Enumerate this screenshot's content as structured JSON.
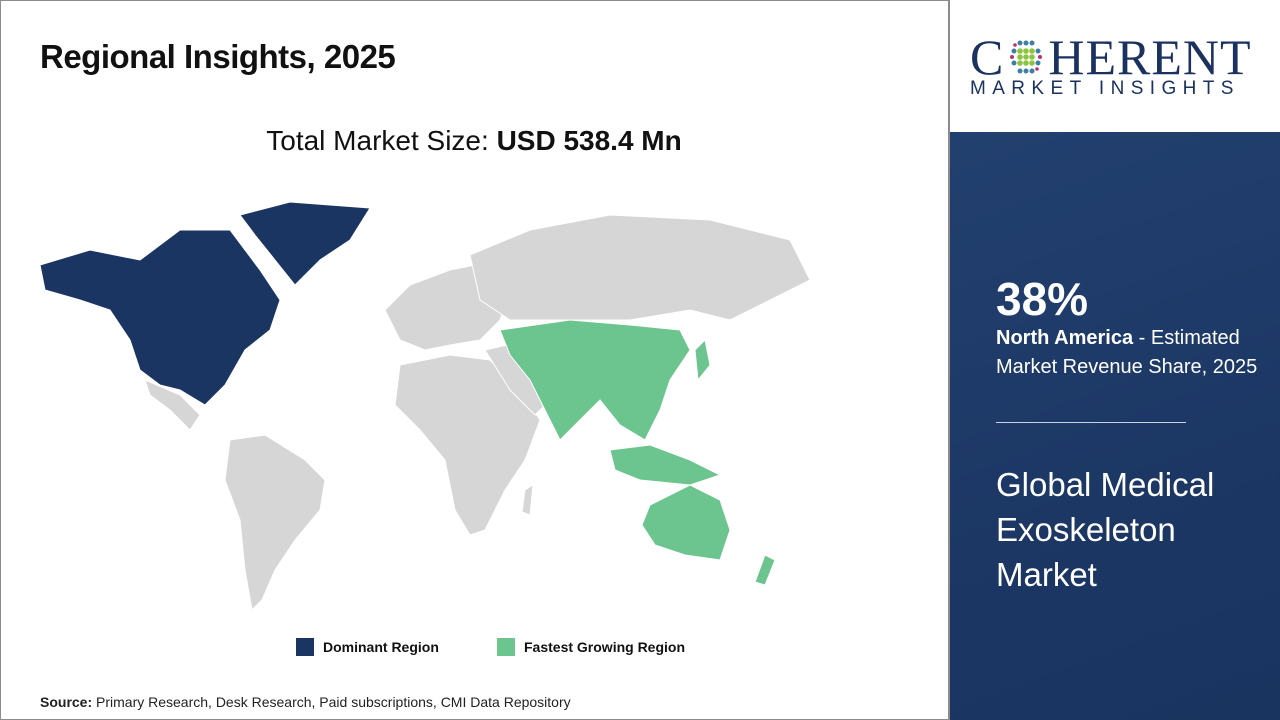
{
  "header": {
    "title": "Regional Insights, 2025"
  },
  "total_market": {
    "label": "Total Market Size: ",
    "value": "USD 538.4 Mn"
  },
  "map": {
    "colors": {
      "dominant": "#1b3563",
      "fastest": "#6cc58f",
      "other": "#d6d6d6"
    },
    "dominant_region": "North America",
    "fastest_growing_region": "Asia Pacific"
  },
  "legend": {
    "items": [
      {
        "label": "Dominant Region",
        "color": "#1b3563"
      },
      {
        "label": "Fastest Growing Region",
        "color": "#6cc58f"
      }
    ]
  },
  "source": {
    "label": "Source:",
    "text": " Primary Research, Desk Research, Paid subscriptions, CMI Data Repository"
  },
  "logo": {
    "main": "COHERENT",
    "main_left": "C",
    "main_right": "HERENT",
    "sub": "MARKET INSIGHTS"
  },
  "panel": {
    "share": "38%",
    "region": "North America",
    "share_desc": " - Estimated Market Revenue Share, 2025",
    "market_name": "Global Medical Exoskeleton Market",
    "background": "#1f3a68"
  }
}
